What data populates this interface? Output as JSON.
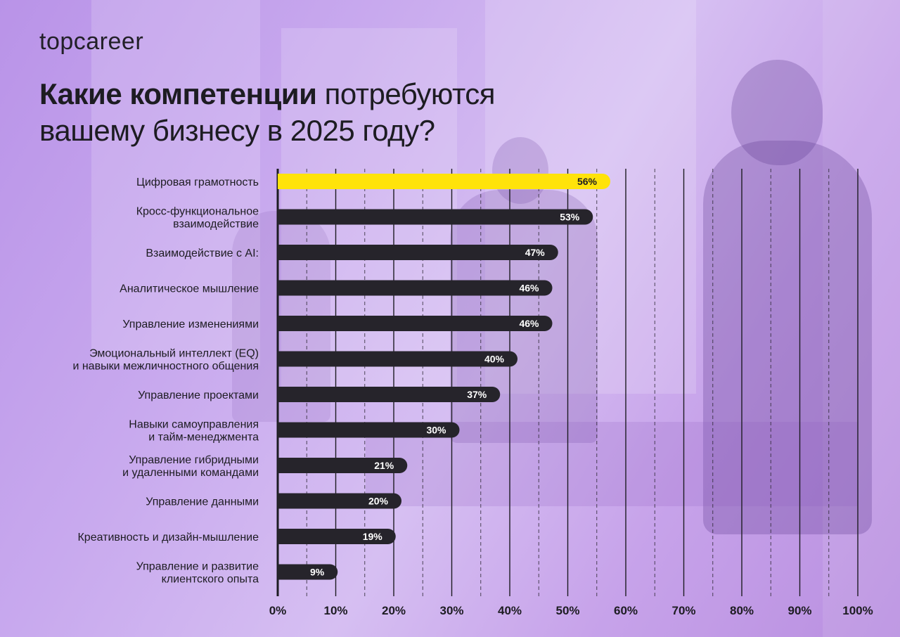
{
  "brand": {
    "logo_text": "topcareer"
  },
  "heading": {
    "bold_part": "Какие компетенции",
    "regular_part": " потребуются",
    "line2": "вашему бизнесу в 2025 году?"
  },
  "colors": {
    "highlight_bar": "#ffe30a",
    "bar": "#26242b",
    "text": "#1d1c22",
    "highlight_value_text": "#1d1c22",
    "value_text": "#ffffff"
  },
  "chart_data": {
    "type": "bar",
    "orientation": "horizontal",
    "categories": [
      [
        "Цифровая грамотность"
      ],
      [
        "Кросс-функциональное",
        "взаимодействие"
      ],
      [
        "Взаимодействие с AI:"
      ],
      [
        "Аналитическое мышление"
      ],
      [
        "Управление изменениями"
      ],
      [
        "Эмоциональный интеллект (EQ)",
        "и навыки межличностного общения"
      ],
      [
        "Управление проектами"
      ],
      [
        "Навыки самоуправления",
        "и тайм-менеджмента"
      ],
      [
        "Управление гибридными",
        "и удаленными командами"
      ],
      [
        "Управление данными"
      ],
      [
        "Креативность и дизайн-мышление"
      ],
      [
        "Управление и развитие",
        "клиентского опыта"
      ]
    ],
    "values": [
      56,
      53,
      47,
      46,
      46,
      40,
      37,
      30,
      21,
      20,
      19,
      9
    ],
    "value_labels": [
      "56%",
      "53%",
      "47%",
      "46%",
      "46%",
      "40%",
      "37%",
      "30%",
      "21%",
      "20%",
      "19%",
      "9%"
    ],
    "highlight_index": 0,
    "xlim": [
      0,
      100
    ],
    "x_ticks": [
      0,
      10,
      20,
      30,
      40,
      50,
      60,
      70,
      80,
      90,
      100
    ],
    "x_tick_labels": [
      "0%",
      "10%",
      "20%",
      "30%",
      "40%",
      "50%",
      "60%",
      "70%",
      "80%",
      "90%",
      "100%"
    ],
    "grid": "vertical solid lines at major ticks, dashed lines at midpoints",
    "legend": "none"
  }
}
